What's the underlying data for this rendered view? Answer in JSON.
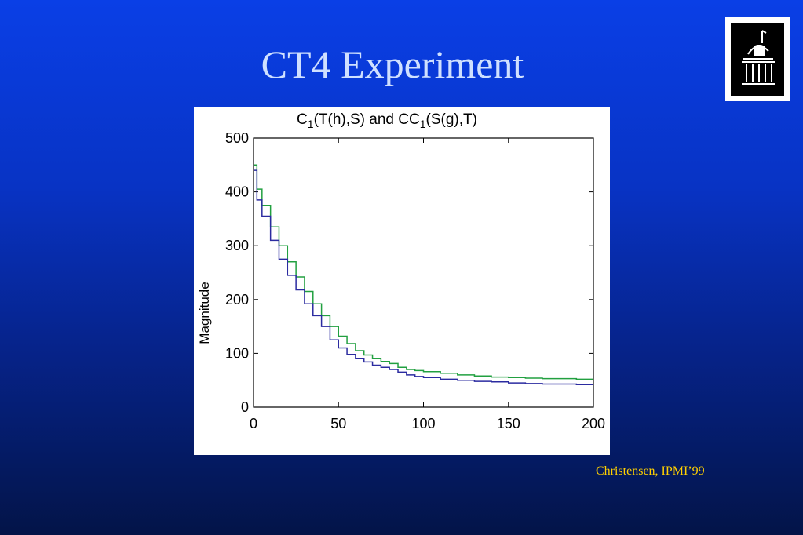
{
  "slide": {
    "title": "CT4 Experiment",
    "credit": "Christensen, IPMI’99",
    "colors": {
      "background_top": "#0a3fe6",
      "background_bottom": "#031448",
      "title": "#cfe0ff",
      "credit": "#ffd000"
    },
    "logo": {
      "icon": "building-dome-icon"
    }
  },
  "chart_data": {
    "type": "line",
    "title_parts": [
      "C",
      "1",
      "(T(h),S) and C",
      "1",
      "(S(g),T)"
    ],
    "xlabel": "",
    "ylabel": "Magnitude",
    "xlim": [
      0,
      200
    ],
    "ylim": [
      0,
      500
    ],
    "xticks": [
      "0",
      "50",
      "100",
      "150",
      "200"
    ],
    "yticks": [
      "0",
      "100",
      "200",
      "300",
      "400",
      "500"
    ],
    "grid": false,
    "legend": "none",
    "series": [
      {
        "color": "#22a040",
        "x": [
          0,
          2,
          5,
          10,
          15,
          20,
          25,
          30,
          35,
          40,
          45,
          50,
          55,
          60,
          65,
          70,
          75,
          80,
          85,
          90,
          95,
          100,
          110,
          120,
          130,
          140,
          150,
          160,
          170,
          180,
          190,
          200
        ],
        "y": [
          450,
          405,
          375,
          335,
          300,
          270,
          242,
          215,
          192,
          170,
          150,
          132,
          118,
          105,
          97,
          90,
          85,
          81,
          74,
          70,
          68,
          66,
          63,
          60,
          58,
          56,
          55,
          54,
          53,
          53,
          52,
          52
        ]
      },
      {
        "color": "#2b2ba0",
        "x": [
          0,
          2,
          5,
          10,
          15,
          20,
          25,
          30,
          35,
          40,
          45,
          50,
          55,
          60,
          65,
          70,
          75,
          80,
          85,
          90,
          95,
          100,
          110,
          120,
          130,
          140,
          150,
          160,
          170,
          180,
          190,
          200
        ],
        "y": [
          440,
          385,
          355,
          310,
          275,
          245,
          218,
          192,
          170,
          150,
          125,
          110,
          98,
          90,
          84,
          78,
          74,
          70,
          65,
          60,
          57,
          55,
          52,
          50,
          48,
          47,
          45,
          44,
          43,
          43,
          42,
          42
        ]
      }
    ]
  }
}
